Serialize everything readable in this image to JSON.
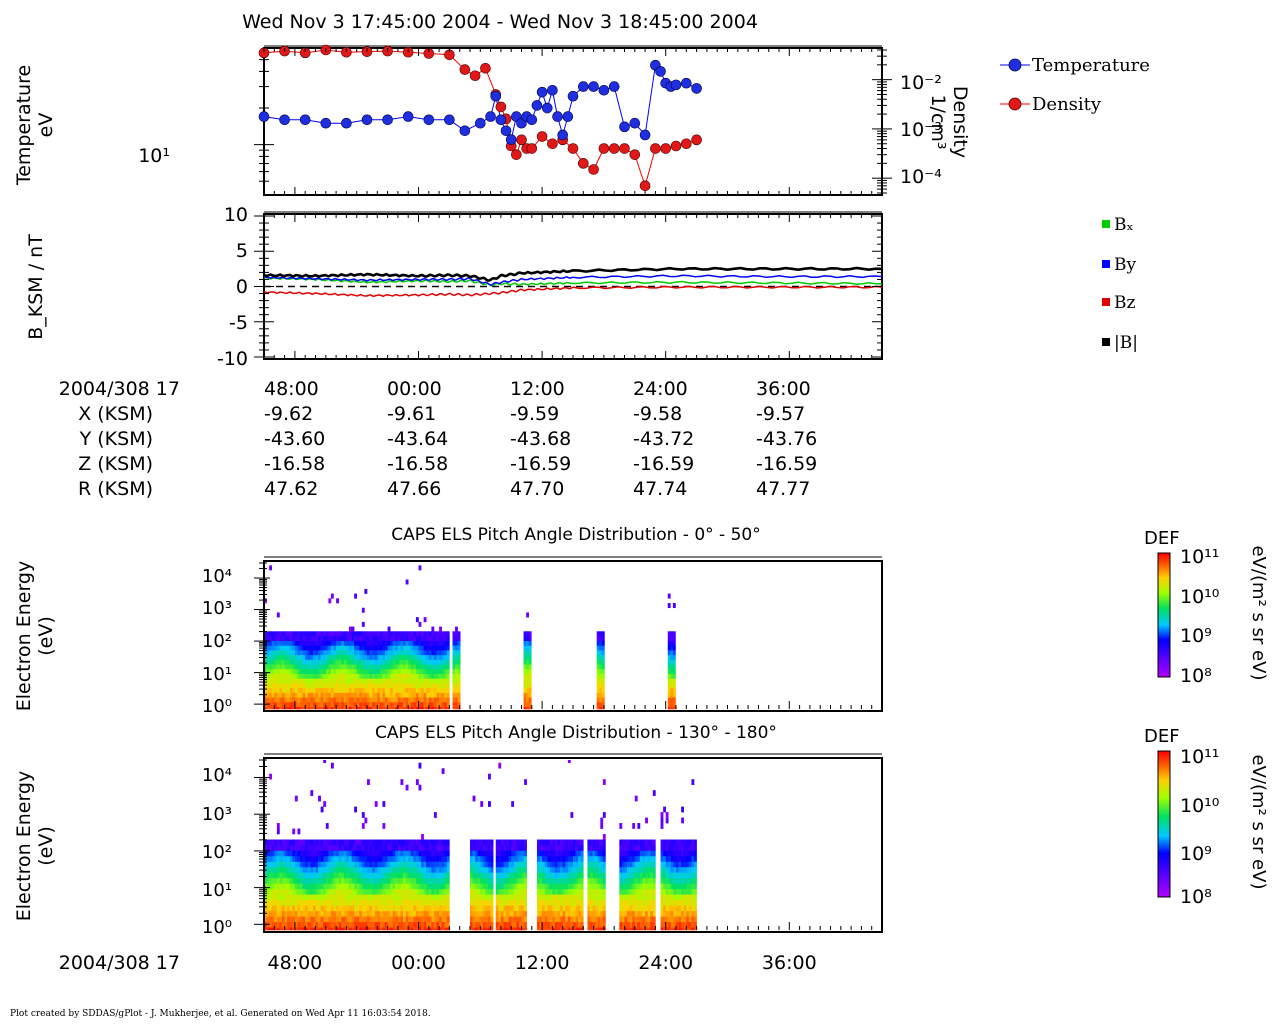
{
  "header": {
    "title": "Wed Nov 3 17:45:00 2004 - Wed Nov 3 18:45:00 2004"
  },
  "footer": {
    "text": "Plot created by SDDAS/gPlot - J. Mukherjee, et al.  Generated on Wed Apr 11 16:03:54 2018."
  },
  "colors": {
    "temperature": "#0000ff",
    "temperature_fill": "#1f2fe0",
    "density": "#ff0000",
    "density_fill": "#e01818",
    "bx": "#00cc00",
    "by": "#0000ff",
    "bz": "#e00000",
    "bmag": "#000000"
  },
  "ephemeris": {
    "date_label": "2004/308 17",
    "rows": [
      {
        "label": "X (KSM)",
        "values": [
          "-9.62",
          "-9.61",
          "-9.59",
          "-9.58",
          "-9.57"
        ]
      },
      {
        "label": "Y (KSM)",
        "values": [
          "-43.60",
          "-43.64",
          "-43.68",
          "-43.72",
          "-43.76"
        ]
      },
      {
        "label": "Z (KSM)",
        "values": [
          "-16.58",
          "-16.58",
          "-16.59",
          "-16.59",
          "-16.59"
        ]
      },
      {
        "label": "R (KSM)",
        "values": [
          "47.62",
          "47.66",
          "47.70",
          "47.74",
          "47.77"
        ]
      }
    ]
  },
  "bottom_date_label": "2004/308 17",
  "chart_data": [
    {
      "id": "moments",
      "type": "scatter",
      "ylabel": [
        "Temperature",
        "eV"
      ],
      "ylabel_right": [
        "Density",
        "1/cm³"
      ],
      "ylim": [
        4,
        60
      ],
      "y_log": true,
      "y_ticks": [
        "10¹"
      ],
      "y2lim": [
        5e-05,
        0.04
      ],
      "y2_log": true,
      "y2_ticks": [
        "10⁻²",
        "10⁻³",
        "10⁻⁴"
      ],
      "xlim": [
        0,
        60
      ],
      "legend": [
        "Temperature",
        "Density"
      ],
      "legend_placement": "right",
      "series": [
        {
          "name": "Temperature",
          "x": [
            0,
            2,
            4,
            6,
            8,
            10,
            12,
            14,
            16,
            18,
            19.5,
            21,
            22,
            22.5,
            23,
            23.5,
            24,
            24.5,
            25,
            25.5,
            26,
            26.5,
            27,
            27.5,
            28,
            28.5,
            29,
            29.5,
            30,
            31,
            32,
            33,
            34,
            35,
            36,
            37,
            38,
            38.5,
            39,
            39.5,
            40,
            41,
            42
          ],
          "values": [
            17,
            16,
            16,
            15,
            15,
            16,
            16,
            17,
            16,
            16,
            13,
            15,
            17,
            25,
            16,
            13,
            11,
            17,
            15,
            17,
            16,
            21,
            27,
            20,
            28,
            17,
            12,
            17,
            25,
            30,
            30,
            28,
            30,
            14,
            15,
            12,
            45,
            40,
            32,
            30,
            31,
            32,
            29
          ]
        },
        {
          "name": "Density",
          "x": [
            0,
            2,
            4,
            6,
            8,
            10,
            12,
            14,
            16,
            18,
            19.5,
            20.5,
            21.5,
            22.5,
            23,
            23.5,
            24,
            24.5,
            25,
            25.5,
            26,
            27,
            28,
            29,
            30,
            31,
            32,
            33,
            34,
            35,
            36,
            37,
            38,
            39,
            40,
            41,
            42
          ],
          "values": [
            0.035,
            0.038,
            0.035,
            0.04,
            0.036,
            0.037,
            0.038,
            0.036,
            0.034,
            0.032,
            0.016,
            0.012,
            0.017,
            0.005,
            0.0028,
            0.0016,
            0.00045,
            0.0003,
            0.0006,
            0.0004,
            0.0004,
            0.0007,
            0.0005,
            0.0006,
            0.0004,
            0.0002,
            0.00015,
            0.0004,
            0.0004,
            0.0004,
            0.0003,
            7e-05,
            0.0004,
            0.0004,
            0.00045,
            0.0005,
            0.0006
          ]
        }
      ]
    },
    {
      "id": "magnetic-field",
      "type": "line",
      "ylabel": "B_KSM / nT",
      "ylim": [
        -10,
        10
      ],
      "y_ticks": [
        "10",
        "5",
        "0",
        "-5",
        "-10"
      ],
      "xlim": [
        0,
        60
      ],
      "legend": [
        "Bₓ",
        "By",
        "Bz",
        "|B|"
      ],
      "legend_placement": "right",
      "series": [
        {
          "name": "Bx",
          "x": [
            0,
            5,
            10,
            15,
            18,
            20,
            22,
            23,
            25,
            30,
            40,
            50,
            60
          ],
          "values": [
            1.2,
            1.0,
            0.6,
            0.8,
            0.7,
            0.8,
            0.2,
            0.4,
            0.3,
            0.5,
            0.6,
            0.5,
            0.4
          ]
        },
        {
          "name": "By",
          "x": [
            0,
            5,
            10,
            15,
            18,
            20,
            22,
            23,
            25,
            30,
            40,
            50,
            60
          ],
          "values": [
            1.3,
            1.1,
            0.9,
            1.0,
            1.0,
            1.1,
            0.3,
            0.6,
            1.0,
            1.3,
            1.5,
            1.4,
            1.4
          ]
        },
        {
          "name": "Bz",
          "x": [
            0,
            5,
            10,
            15,
            18,
            20,
            22,
            23,
            25,
            30,
            40,
            50,
            60
          ],
          "values": [
            -0.8,
            -1.0,
            -1.3,
            -1.2,
            -1.1,
            -1.2,
            -1.0,
            -0.9,
            -0.5,
            -0.2,
            -0.1,
            -0.1,
            -0.1
          ]
        },
        {
          "name": "|B|",
          "x": [
            0,
            5,
            10,
            15,
            18,
            20,
            22,
            23,
            25,
            30,
            40,
            50,
            60
          ],
          "values": [
            1.6,
            1.5,
            1.7,
            1.5,
            1.6,
            1.5,
            0.9,
            1.5,
            1.9,
            2.2,
            2.5,
            2.5,
            2.5
          ]
        }
      ],
      "zero_line": true
    },
    {
      "id": "els-pad-low",
      "type": "heatmap",
      "title": "CAPS ELS Pitch Angle Distribution - 0° - 50°",
      "ylabel": [
        "Electron Energy",
        "(eV)"
      ],
      "y_log": true,
      "ylim": [
        0.7,
        30000
      ],
      "y_ticks": [
        "10⁴",
        "10³",
        "10²",
        "10¹",
        "10⁰"
      ],
      "xlim": [
        0,
        60
      ],
      "colorbar": {
        "label": "DEF",
        "units": "eV/(m² s sr eV)",
        "range": [
          100000000.0,
          100000000000.0
        ],
        "ticks": [
          "10¹¹",
          "10¹⁰",
          "10⁹",
          "10⁸"
        ]
      },
      "coverage": [
        [
          0,
          17.8
        ],
        [
          18.3,
          18.9
        ],
        [
          25.2,
          25.8
        ],
        [
          32.3,
          32.9
        ],
        [
          39.2,
          39.8
        ]
      ],
      "peak_cutoff_ev": 100
    },
    {
      "id": "els-pad-high",
      "type": "heatmap",
      "title": "CAPS ELS Pitch Angle Distribution - 130° - 180°",
      "ylabel": [
        "Electron Energy",
        "(eV)"
      ],
      "y_log": true,
      "ylim": [
        0.7,
        30000
      ],
      "y_ticks": [
        "10⁴",
        "10³",
        "10²",
        "10¹",
        "10⁰"
      ],
      "xlim": [
        0,
        60
      ],
      "colorbar": {
        "label": "DEF",
        "units": "eV/(m² s sr eV)",
        "range": [
          100000000.0,
          100000000000.0
        ],
        "ticks": [
          "10¹¹",
          "10¹⁰",
          "10⁹",
          "10⁸"
        ]
      },
      "coverage": [
        [
          0,
          17.8
        ],
        [
          20,
          22.2
        ],
        [
          22.5,
          25.4
        ],
        [
          26.5,
          31
        ],
        [
          31.4,
          33
        ],
        [
          34.5,
          38
        ],
        [
          38.5,
          42
        ]
      ],
      "peak_cutoff_ev": 100
    }
  ],
  "x_axis": {
    "ticks": [
      "48:00",
      "00:00",
      "12:00",
      "24:00",
      "36:00"
    ],
    "tick_minutes": [
      3,
      15,
      27,
      39,
      51
    ]
  }
}
